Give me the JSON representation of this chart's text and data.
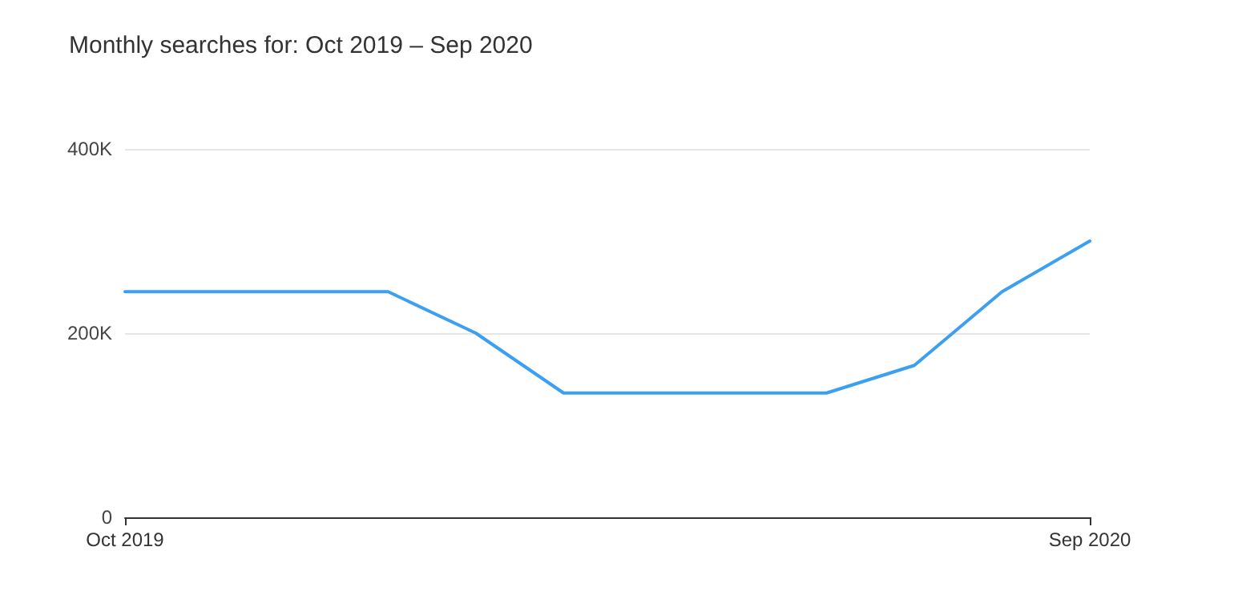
{
  "chart_data": {
    "type": "line",
    "title": "Monthly searches for: Oct 2019 – Sep 2020",
    "categories": [
      "Oct 2019",
      null,
      null,
      null,
      null,
      null,
      null,
      null,
      null,
      null,
      null,
      "Sep 2020"
    ],
    "series": [
      {
        "color": "#3c9ff0",
        "values": [
          245000,
          245000,
          245000,
          245000,
          200000,
          135000,
          135000,
          135000,
          135000,
          165000,
          245000,
          300000
        ]
      }
    ],
    "ylim": [
      0,
      400000
    ],
    "yticks": [
      0,
      {
        "value": 200000,
        "label": "200K"
      },
      {
        "value": 400000,
        "label": "400K"
      }
    ],
    "grid": "y",
    "marker": "none",
    "line_style": "solid"
  }
}
